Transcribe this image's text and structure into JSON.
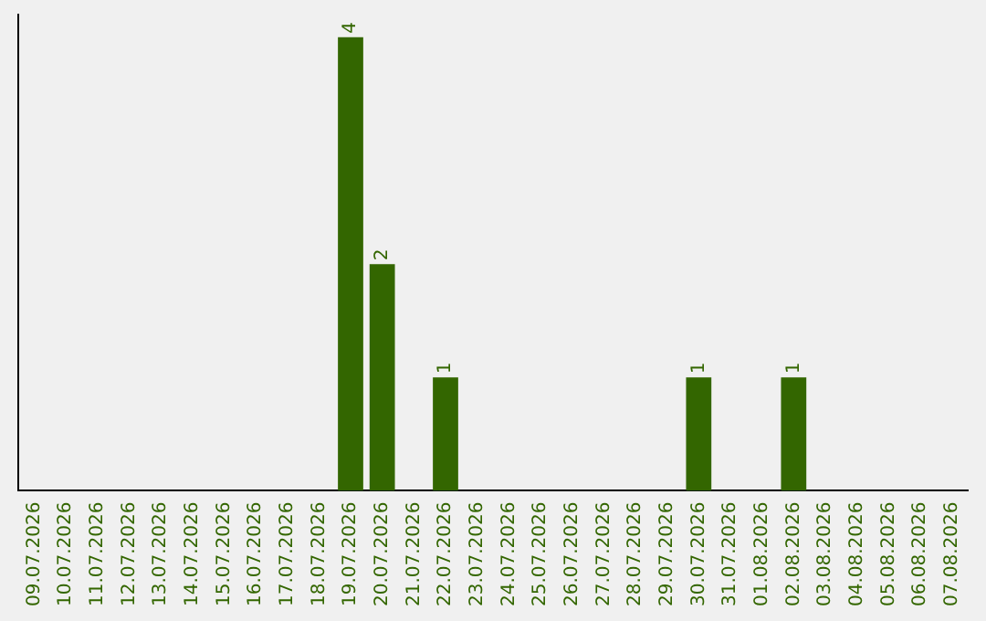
{
  "chart_data": {
    "type": "bar",
    "categories": [
      "09.07.2026",
      "10.07.2026",
      "11.07.2026",
      "12.07.2026",
      "13.07.2026",
      "14.07.2026",
      "15.07.2026",
      "16.07.2026",
      "17.07.2026",
      "18.07.2026",
      "19.07.2026",
      "20.07.2026",
      "21.07.2026",
      "22.07.2026",
      "23.07.2026",
      "24.07.2026",
      "25.07.2026",
      "26.07.2026",
      "27.07.2026",
      "28.07.2026",
      "29.07.2026",
      "30.07.2026",
      "31.07.2026",
      "01.08.2026",
      "02.08.2026",
      "03.08.2026",
      "04.08.2026",
      "05.08.2026",
      "06.08.2026",
      "07.08.2026"
    ],
    "values": [
      0,
      0,
      0,
      0,
      0,
      0,
      0,
      0,
      0,
      0,
      4,
      2,
      0,
      1,
      0,
      0,
      0,
      0,
      0,
      0,
      0,
      1,
      0,
      0,
      1,
      0,
      0,
      0,
      0,
      0
    ],
    "value_labels": [
      null,
      null,
      null,
      null,
      null,
      null,
      null,
      null,
      null,
      null,
      "4",
      "2",
      null,
      "1",
      null,
      null,
      null,
      null,
      null,
      null,
      null,
      "1",
      null,
      null,
      "1",
      null,
      null,
      null,
      null,
      null
    ],
    "color": "#336600",
    "ylim": [
      0,
      4.2
    ],
    "tick_labels": "x",
    "grid": false,
    "legend": false
  }
}
